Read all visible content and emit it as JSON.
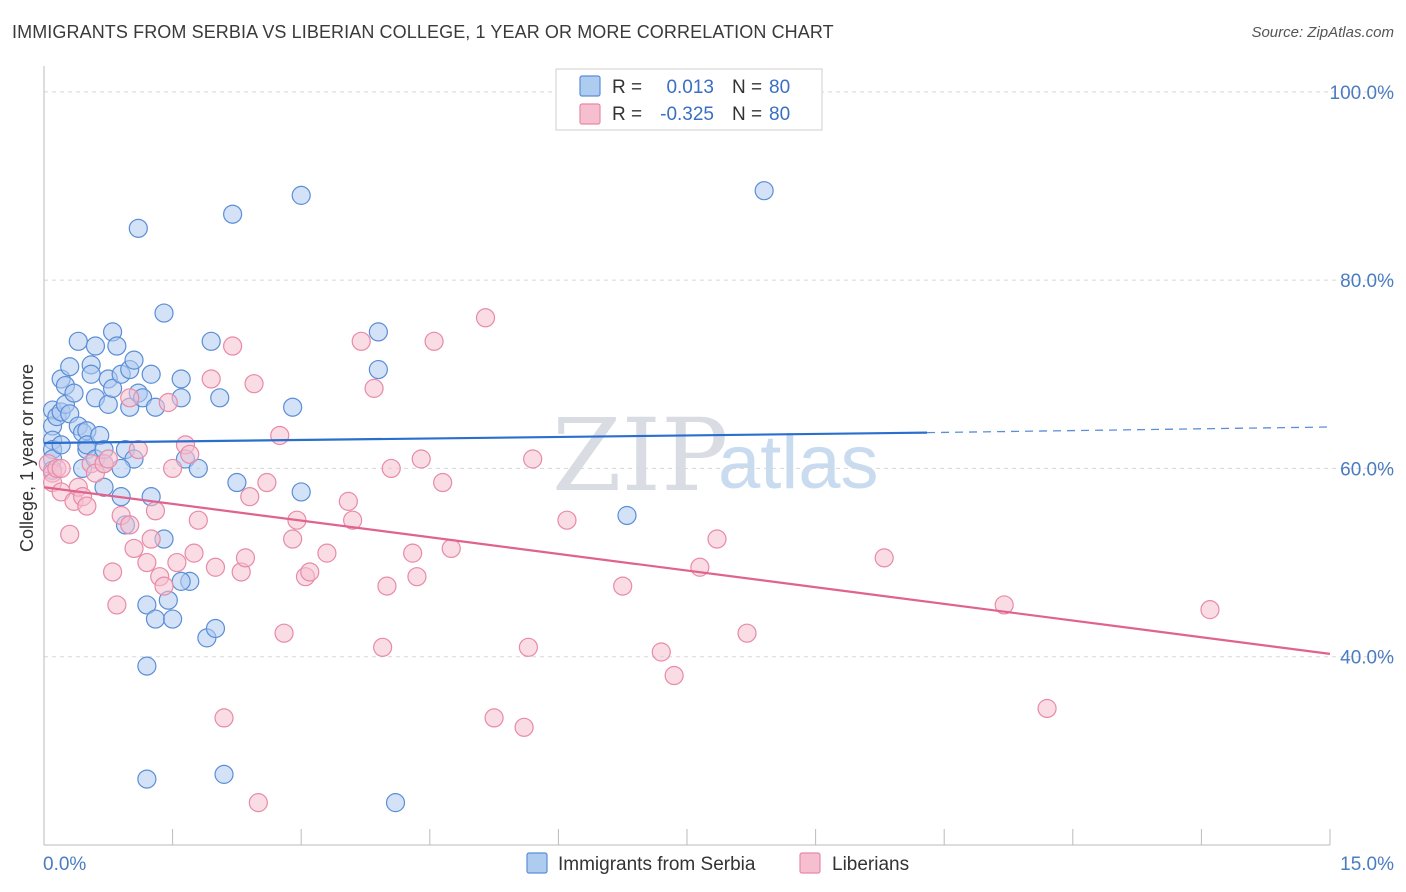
{
  "title": "IMMIGRANTS FROM SERBIA VS LIBERIAN COLLEGE, 1 YEAR OR MORE CORRELATION CHART",
  "source": "Source: ZipAtlas.com",
  "watermark": {
    "zip": "ZIP",
    "atlas": "atlas"
  },
  "colors": {
    "serbia_fill": "#aecbf0",
    "serbia_stroke": "#5b8ed6",
    "serbia_line": "#2b6fce",
    "liberia_fill": "#f6bfd0",
    "liberia_stroke": "#e88aa8",
    "liberia_line": "#e0628f",
    "grid": "#d8d8d8",
    "axis_text": "#4a7cc0"
  },
  "legend": {
    "rows": [
      {
        "r_label": "R =",
        "r_value": "0.013",
        "n_label": "N =",
        "n_value": "80"
      },
      {
        "r_label": "R =",
        "r_value": "-0.325",
        "n_label": "N =",
        "n_value": "80"
      }
    ]
  },
  "chart_data": {
    "type": "scatter",
    "title": "IMMIGRANTS FROM SERBIA VS LIBERIAN COLLEGE, 1 YEAR OR MORE CORRELATION CHART",
    "xlabel": "",
    "ylabel": "College, 1 year or more",
    "xlim": [
      0,
      15
    ],
    "ylim": [
      20,
      102
    ],
    "x_tick_labels": [
      "0.0%",
      "15.0%"
    ],
    "y_ticks": [
      40,
      60,
      80,
      100
    ],
    "y_tick_labels": [
      "40.0%",
      "60.0%",
      "80.0%",
      "100.0%"
    ],
    "grid": true,
    "legend_position": "bottom",
    "series": [
      {
        "name": "Immigrants from Serbia",
        "r": 0.013,
        "n": 80,
        "trend": {
          "x0": 0,
          "y0": 62.7,
          "x1": 10.3,
          "y1": 63.8,
          "dashed_to_x": 15,
          "dashed_to_y": 64.4
        },
        "points": [
          [
            0.1,
            66.2
          ],
          [
            0.1,
            64.5
          ],
          [
            0.1,
            63.0
          ],
          [
            0.1,
            62.0
          ],
          [
            0.1,
            61.0
          ],
          [
            0.1,
            59.8
          ],
          [
            0.15,
            65.5
          ],
          [
            0.2,
            66.0
          ],
          [
            0.2,
            69.5
          ],
          [
            0.25,
            68.8
          ],
          [
            0.25,
            66.8
          ],
          [
            0.3,
            65.8
          ],
          [
            0.3,
            70.8
          ],
          [
            0.35,
            68.0
          ],
          [
            0.4,
            73.5
          ],
          [
            0.4,
            64.5
          ],
          [
            0.45,
            63.8
          ],
          [
            0.45,
            60.0
          ],
          [
            0.5,
            62.0
          ],
          [
            0.5,
            64.0
          ],
          [
            0.5,
            62.5
          ],
          [
            0.55,
            71.0
          ],
          [
            0.55,
            70.0
          ],
          [
            0.6,
            73.0
          ],
          [
            0.6,
            67.5
          ],
          [
            0.6,
            61.0
          ],
          [
            0.65,
            63.5
          ],
          [
            0.7,
            60.5
          ],
          [
            0.7,
            58.0
          ],
          [
            0.75,
            66.8
          ],
          [
            0.75,
            69.5
          ],
          [
            0.8,
            74.5
          ],
          [
            0.8,
            68.5
          ],
          [
            0.85,
            73.0
          ],
          [
            0.9,
            70.0
          ],
          [
            0.9,
            57.0
          ],
          [
            0.95,
            62.0
          ],
          [
            0.95,
            54.0
          ],
          [
            1.0,
            70.5
          ],
          [
            1.0,
            66.5
          ],
          [
            1.05,
            71.5
          ],
          [
            1.05,
            61.0
          ],
          [
            1.1,
            85.5
          ],
          [
            1.1,
            68.0
          ],
          [
            1.15,
            67.5
          ],
          [
            1.2,
            45.5
          ],
          [
            1.2,
            39.0
          ],
          [
            1.2,
            27.0
          ],
          [
            1.25,
            70.0
          ],
          [
            1.25,
            57.0
          ],
          [
            1.3,
            66.5
          ],
          [
            1.3,
            44.0
          ],
          [
            1.4,
            76.5
          ],
          [
            1.4,
            52.5
          ],
          [
            1.45,
            46.0
          ],
          [
            1.5,
            44.0
          ],
          [
            1.6,
            69.5
          ],
          [
            1.6,
            67.5
          ],
          [
            1.65,
            61.0
          ],
          [
            1.7,
            48.0
          ],
          [
            1.8,
            60.0
          ],
          [
            1.9,
            42.0
          ],
          [
            1.95,
            73.5
          ],
          [
            2.0,
            43.0
          ],
          [
            2.05,
            67.5
          ],
          [
            2.1,
            27.5
          ],
          [
            2.2,
            87.0
          ],
          [
            2.25,
            58.5
          ],
          [
            2.9,
            66.5
          ],
          [
            3.0,
            57.5
          ],
          [
            3.0,
            89.0
          ],
          [
            3.9,
            74.5
          ],
          [
            3.9,
            70.5
          ],
          [
            4.1,
            24.5
          ],
          [
            6.8,
            55.0
          ],
          [
            8.4,
            89.5
          ],
          [
            0.2,
            62.5
          ],
          [
            0.7,
            62.0
          ],
          [
            0.9,
            60.0
          ],
          [
            1.6,
            48.0
          ]
        ]
      },
      {
        "name": "Liberians",
        "r": -0.325,
        "n": 80,
        "trend": {
          "x0": 0,
          "y0": 58.0,
          "x1": 15,
          "y1": 40.3
        },
        "points": [
          [
            0.05,
            60.5
          ],
          [
            0.1,
            59.5
          ],
          [
            0.1,
            58.5
          ],
          [
            0.15,
            60.0
          ],
          [
            0.2,
            60.0
          ],
          [
            0.2,
            57.5
          ],
          [
            0.3,
            53.0
          ],
          [
            0.35,
            56.5
          ],
          [
            0.4,
            58.0
          ],
          [
            0.45,
            57.0
          ],
          [
            0.5,
            56.0
          ],
          [
            0.55,
            60.5
          ],
          [
            0.6,
            59.5
          ],
          [
            0.7,
            60.5
          ],
          [
            0.75,
            61.0
          ],
          [
            0.8,
            49.0
          ],
          [
            0.85,
            45.5
          ],
          [
            0.9,
            55.0
          ],
          [
            1.0,
            54.0
          ],
          [
            1.0,
            67.5
          ],
          [
            1.05,
            51.5
          ],
          [
            1.1,
            62.0
          ],
          [
            1.2,
            50.0
          ],
          [
            1.25,
            52.5
          ],
          [
            1.3,
            55.5
          ],
          [
            1.35,
            48.5
          ],
          [
            1.4,
            47.5
          ],
          [
            1.45,
            67.0
          ],
          [
            1.5,
            60.0
          ],
          [
            1.55,
            50.0
          ],
          [
            1.65,
            62.5
          ],
          [
            1.7,
            61.5
          ],
          [
            1.75,
            51.0
          ],
          [
            1.8,
            54.5
          ],
          [
            1.95,
            69.5
          ],
          [
            2.0,
            49.5
          ],
          [
            2.1,
            33.5
          ],
          [
            2.2,
            73.0
          ],
          [
            2.3,
            49.0
          ],
          [
            2.35,
            50.5
          ],
          [
            2.4,
            57.0
          ],
          [
            2.45,
            69.0
          ],
          [
            2.5,
            24.5
          ],
          [
            2.6,
            58.5
          ],
          [
            2.75,
            63.5
          ],
          [
            2.8,
            42.5
          ],
          [
            2.9,
            52.5
          ],
          [
            2.95,
            54.5
          ],
          [
            3.05,
            48.5
          ],
          [
            3.1,
            49.0
          ],
          [
            3.3,
            51.0
          ],
          [
            3.55,
            56.5
          ],
          [
            3.6,
            54.5
          ],
          [
            3.7,
            73.5
          ],
          [
            3.85,
            68.5
          ],
          [
            3.95,
            41.0
          ],
          [
            4.0,
            47.5
          ],
          [
            4.05,
            60.0
          ],
          [
            4.3,
            51.0
          ],
          [
            4.35,
            48.5
          ],
          [
            4.4,
            61.0
          ],
          [
            4.55,
            73.5
          ],
          [
            4.65,
            58.5
          ],
          [
            4.75,
            51.5
          ],
          [
            5.15,
            76.0
          ],
          [
            5.25,
            33.5
          ],
          [
            5.6,
            32.5
          ],
          [
            5.65,
            41.0
          ],
          [
            5.7,
            61.0
          ],
          [
            6.1,
            54.5
          ],
          [
            6.75,
            47.5
          ],
          [
            7.2,
            40.5
          ],
          [
            7.35,
            38.0
          ],
          [
            7.65,
            49.5
          ],
          [
            7.85,
            52.5
          ],
          [
            8.2,
            42.5
          ],
          [
            9.8,
            50.5
          ],
          [
            11.2,
            45.5
          ],
          [
            11.7,
            34.5
          ],
          [
            13.6,
            45.0
          ]
        ]
      }
    ]
  }
}
